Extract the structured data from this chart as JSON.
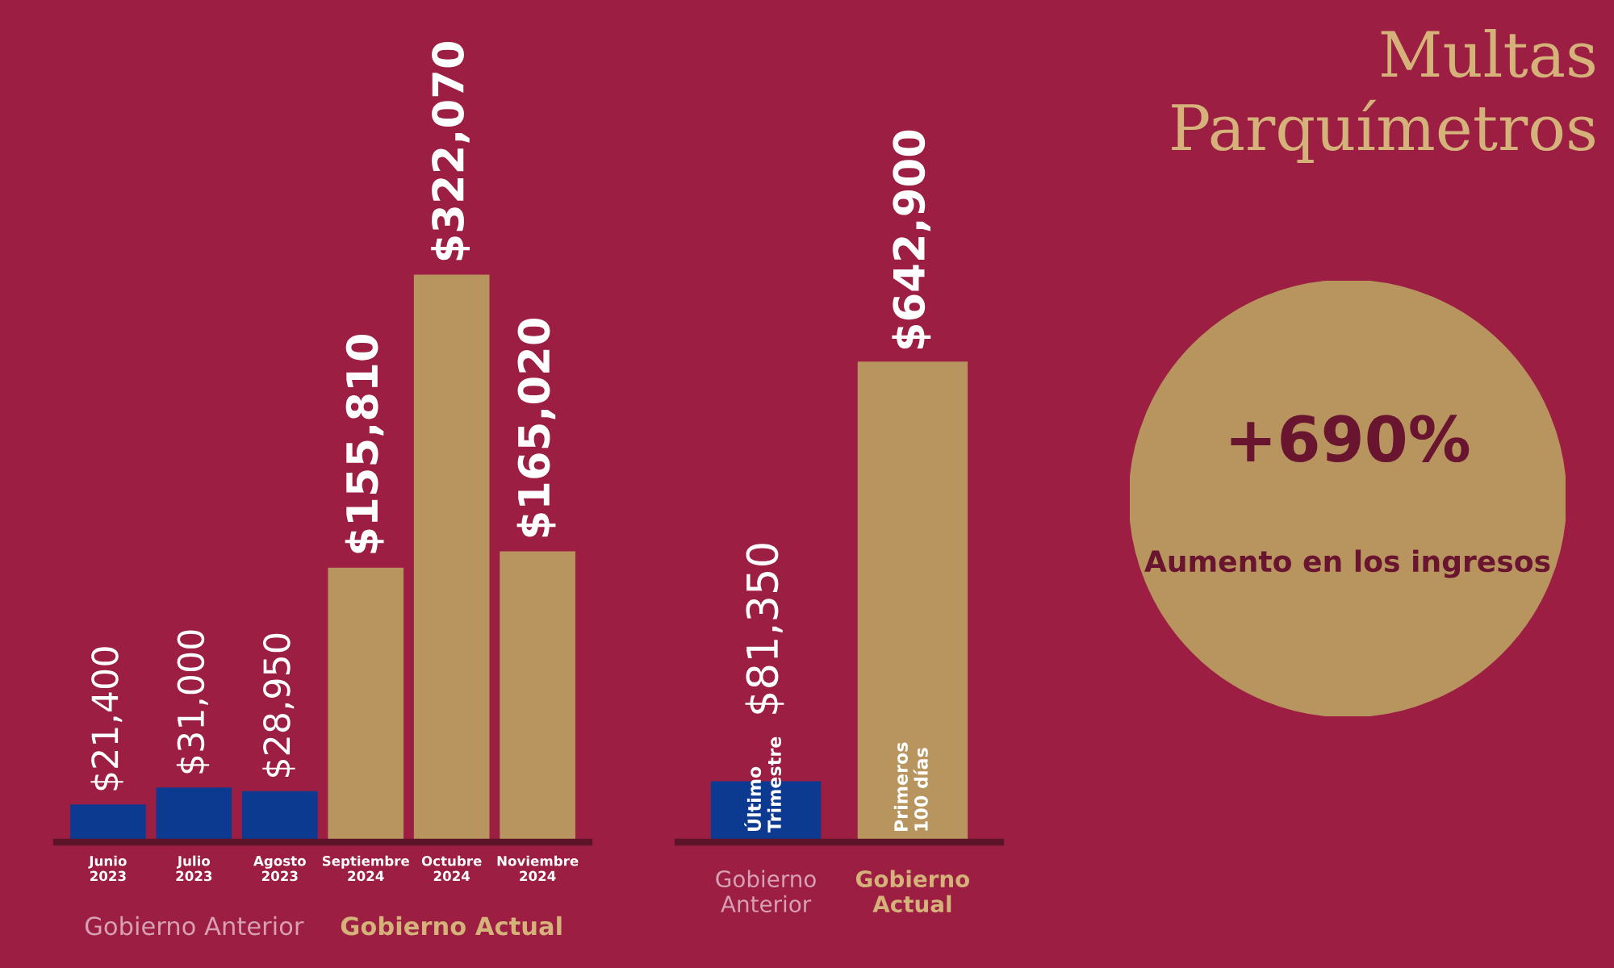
{
  "chart_data": [
    {
      "type": "bar",
      "categories": [
        "Junio\n2023",
        "Julio\n2023",
        "Agosto\n2023",
        "Septiembre\n2024",
        "Octubre\n2024",
        "Noviembre\n2024"
      ],
      "values": [
        21400,
        31000,
        28950,
        155810,
        322070,
        165020
      ],
      "colors": [
        "#0d3a91",
        "#0d3a91",
        "#0d3a91",
        "#b8955f",
        "#b8955f",
        "#b8955f"
      ],
      "value_labels": [
        "$21,400",
        "$31,000",
        "$28,950",
        "$155,810",
        "$322,070",
        "$165,020"
      ],
      "annotations": [
        "Gobierno Anterior",
        "Gobierno Actual"
      ]
    },
    {
      "type": "bar",
      "categories": [
        "Último\nTrimestre",
        "Primeros\n100 días"
      ],
      "values": [
        81350,
        642900
      ],
      "colors": [
        "#0d3a91",
        "#b8955f"
      ],
      "value_labels": [
        "$81,350",
        "$642,900"
      ],
      "annotations": [
        "Gobierno\nAnterior",
        "Gobierno\nActual"
      ]
    },
    {
      "type": "other",
      "title": "Multas\nParquímetros",
      "annotations": [
        "+690%",
        "Aumento en los ingresos"
      ]
    }
  ]
}
